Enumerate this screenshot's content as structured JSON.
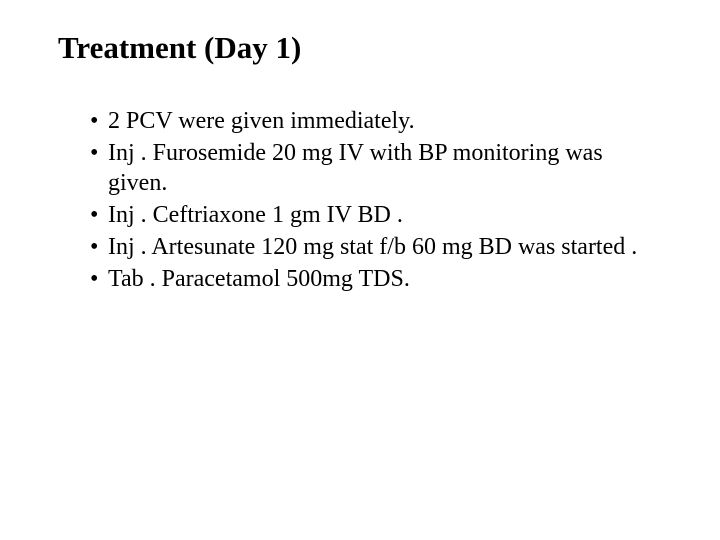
{
  "title": "Treatment (Day 1)",
  "bullets": [
    "2 PCV were given immediately.",
    "Inj . Furosemide 20 mg IV with BP monitoring was given.",
    "Inj . Ceftriaxone 1 gm  IV BD .",
    "Inj . Artesunate  120 mg stat f/b 60 mg BD was started .",
    "Tab . Paracetamol 500mg TDS."
  ],
  "colors": {
    "background": "#ffffff",
    "text": "#000000"
  },
  "typography": {
    "font_family": "Times New Roman",
    "title_fontsize": 31,
    "title_weight": "bold",
    "body_fontsize": 24,
    "body_weight": "normal"
  }
}
